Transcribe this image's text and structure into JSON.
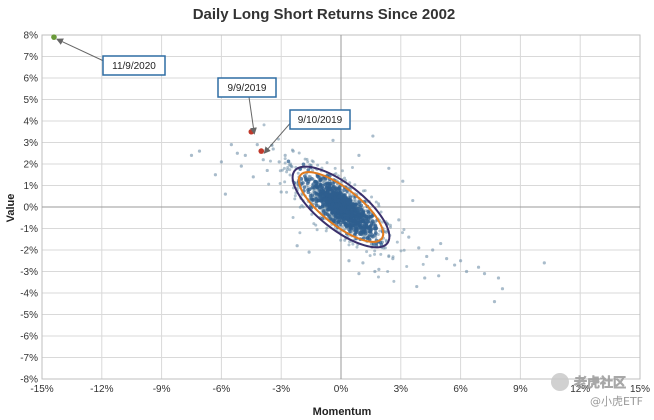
{
  "chart_data": {
    "type": "scatter",
    "title": "Daily Long Short Returns Since 2002",
    "xlabel": "Momentum",
    "ylabel": "Value",
    "xlim": [
      -15,
      15
    ],
    "ylim": [
      -8,
      8
    ],
    "x_ticks": [
      -15,
      -12,
      -9,
      -6,
      -3,
      0,
      3,
      6,
      9,
      12,
      15
    ],
    "y_ticks": [
      -8,
      -7,
      -6,
      -5,
      -4,
      -3,
      -2,
      -1,
      0,
      1,
      2,
      3,
      4,
      5,
      6,
      7,
      8
    ],
    "x_tick_labels": [
      "-15%",
      "-12%",
      "-9%",
      "-6%",
      "-3%",
      "0%",
      "3%",
      "6%",
      "9%",
      "12%",
      "15%"
    ],
    "y_tick_labels": [
      "-8%",
      "-7%",
      "-6%",
      "-5%",
      "-4%",
      "-3%",
      "-2%",
      "-1%",
      "0%",
      "1%",
      "2%",
      "3%",
      "4%",
      "5%",
      "6%",
      "7%",
      "8%"
    ],
    "grid": true,
    "colors": {
      "points": "#6f8fa8",
      "core": "#2f5f8f",
      "highlight_green": "#6a9a3a",
      "highlight_red": "#c0392b",
      "ellipse_outer": "#3a2f6b",
      "ellipse_inner": "#e07b1f",
      "callout_border": "#2e6da4",
      "grid": "#d9d9d9"
    },
    "highlights": [
      {
        "label": "11/9/2020",
        "x": -14.4,
        "y": 7.9,
        "color": "#6a9a3a"
      },
      {
        "label": "9/9/2019",
        "x": -4.5,
        "y": 3.5,
        "color": "#c0392b"
      },
      {
        "label": "9/10/2019",
        "x": -4.0,
        "y": 2.6,
        "color": "#c0392b"
      }
    ],
    "ellipses": [
      {
        "cx": 0.0,
        "cy": 0.0,
        "rx": 2.85,
        "ry": 1.05,
        "angle_deg": -38,
        "color": "#3a2f6b"
      },
      {
        "cx": 0.0,
        "cy": 0.0,
        "rx": 2.5,
        "ry": 0.85,
        "angle_deg": -38,
        "color": "#e07b1f"
      }
    ],
    "outliers": [
      [
        -7.5,
        2.4
      ],
      [
        -7.1,
        2.6
      ],
      [
        -6.3,
        1.5
      ],
      [
        -6.0,
        2.1
      ],
      [
        -5.8,
        0.6
      ],
      [
        -5.5,
        2.9
      ],
      [
        -5.2,
        2.5
      ],
      [
        -5.0,
        1.9
      ],
      [
        -4.8,
        2.4
      ],
      [
        -4.4,
        1.4
      ],
      [
        -4.2,
        2.9
      ],
      [
        -3.9,
        2.2
      ],
      [
        -3.7,
        1.7
      ],
      [
        -3.4,
        2.7
      ],
      [
        -3.1,
        2.1
      ],
      [
        -2.8,
        2.4
      ],
      [
        -2.4,
        2.6
      ],
      [
        -1.3,
        3.7
      ],
      [
        -0.4,
        3.1
      ],
      [
        0.9,
        2.4
      ],
      [
        1.6,
        3.3
      ],
      [
        2.4,
        1.8
      ],
      [
        3.1,
        1.2
      ],
      [
        3.6,
        0.3
      ],
      [
        2.9,
        -0.6
      ],
      [
        3.4,
        -1.4
      ],
      [
        3.9,
        -1.9
      ],
      [
        4.3,
        -2.3
      ],
      [
        4.6,
        -2.0
      ],
      [
        5.0,
        -1.7
      ],
      [
        5.3,
        -2.4
      ],
      [
        5.7,
        -2.7
      ],
      [
        6.0,
        -2.5
      ],
      [
        6.3,
        -3.0
      ],
      [
        2.6,
        -2.4
      ],
      [
        1.9,
        -2.9
      ],
      [
        1.1,
        -2.6
      ],
      [
        0.4,
        -2.5
      ],
      [
        0.9,
        -3.1
      ],
      [
        1.7,
        -3.0
      ],
      [
        3.8,
        -3.7
      ],
      [
        4.2,
        -3.3
      ],
      [
        4.9,
        -3.2
      ],
      [
        6.9,
        -2.8
      ],
      [
        7.2,
        -3.1
      ],
      [
        7.9,
        -3.3
      ],
      [
        8.1,
        -3.8
      ],
      [
        7.7,
        -4.4
      ],
      [
        10.2,
        -2.6
      ],
      [
        -2.2,
        -1.8
      ],
      [
        -1.6,
        -2.1
      ],
      [
        -3.0,
        0.7
      ],
      [
        -2.5,
        1.9
      ]
    ]
  },
  "watermark": {
    "text": "老虎社区",
    "sub": "@小虎ETF"
  }
}
